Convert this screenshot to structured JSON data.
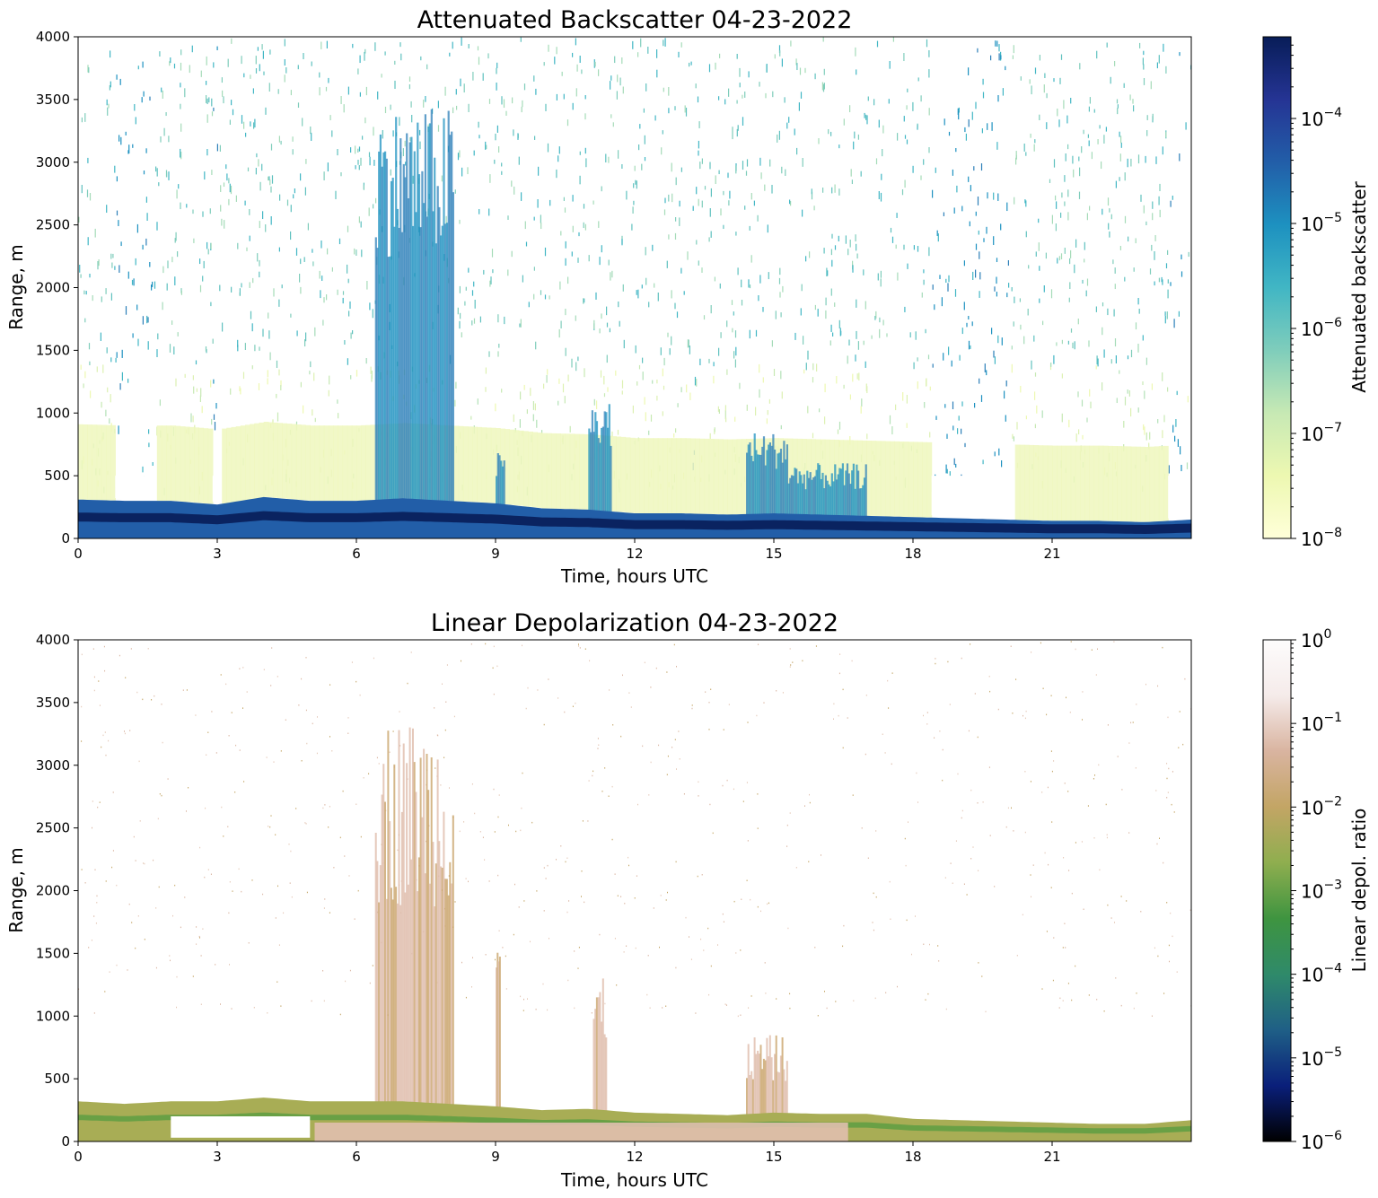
{
  "figure": {
    "panels": [
      {
        "id": "backscatter",
        "title": "Attenuated Backscatter 04-23-2022",
        "xlabel": "Time, hours UTC",
        "ylabel": "Range, m",
        "colorbar": {
          "label": "Attenuated backscatter",
          "scale": "log",
          "range": [
            1e-08,
            0.0006
          ],
          "ticks": [
            {
              "base": "10",
              "exp": "−4",
              "value": 0.0001
            },
            {
              "base": "10",
              "exp": "−5",
              "value": 1e-05
            },
            {
              "base": "10",
              "exp": "−6",
              "value": 1e-06
            },
            {
              "base": "10",
              "exp": "−7",
              "value": 1e-07
            },
            {
              "base": "10",
              "exp": "−8",
              "value": 1e-08
            }
          ],
          "colormap_name": "YlGnBu",
          "colormap": [
            "#ffffd9",
            "#edf8b1",
            "#c7e9b4",
            "#7fcdbb",
            "#41b6c4",
            "#1d91c0",
            "#225ea8",
            "#253494",
            "#081d58"
          ]
        }
      },
      {
        "id": "depolarization",
        "title": "Linear Depolarization 04-23-2022",
        "xlabel": "Time, hours UTC",
        "ylabel": "Range, m",
        "colorbar": {
          "label": "Linear depol. ratio",
          "scale": "log",
          "range": [
            1e-06,
            1
          ],
          "ticks": [
            {
              "base": "10",
              "exp": "0",
              "value": 1
            },
            {
              "base": "10",
              "exp": "−1",
              "value": 0.1
            },
            {
              "base": "10",
              "exp": "−2",
              "value": 0.01
            },
            {
              "base": "10",
              "exp": "−3",
              "value": 0.001
            },
            {
              "base": "10",
              "exp": "−4",
              "value": 0.0001
            },
            {
              "base": "10",
              "exp": "−5",
              "value": 1e-05
            },
            {
              "base": "10",
              "exp": "−6",
              "value": 1e-06
            }
          ],
          "colormap_name": "gist_earth",
          "colormap": [
            "#000000",
            "#0a1f7a",
            "#1f5f86",
            "#2f8a6a",
            "#3e9440",
            "#8fae4f",
            "#c3a565",
            "#d9b4a0",
            "#f5ebea",
            "#fdfcfc"
          ]
        }
      }
    ]
  },
  "chart_data": [
    {
      "type": "heatmap",
      "title": "Attenuated Backscatter 04-23-2022",
      "xlabel": "Time, hours UTC",
      "ylabel": "Range, m",
      "xlim": [
        0,
        24
      ],
      "ylim": [
        0,
        4000
      ],
      "xticks": [
        0,
        3,
        6,
        9,
        12,
        15,
        18,
        21
      ],
      "yticks": [
        0,
        500,
        1000,
        1500,
        2000,
        2500,
        3000,
        3500,
        4000
      ],
      "color_scale": "log",
      "color_range": [
        1e-08,
        0.0006
      ],
      "boundary_layer_top_m": {
        "x": [
          0,
          1,
          2,
          3,
          4,
          5,
          6,
          7,
          8,
          9,
          10,
          11,
          12,
          13,
          14,
          15,
          16,
          17,
          18,
          19,
          20,
          21,
          22,
          23,
          24
        ],
        "y": [
          310,
          300,
          300,
          270,
          330,
          300,
          300,
          320,
          300,
          280,
          240,
          230,
          200,
          200,
          190,
          200,
          190,
          180,
          170,
          160,
          150,
          140,
          140,
          130,
          150
        ]
      },
      "clear_sky_gaps_below_500m_hours": [
        [
          0.8,
          1.6
        ],
        [
          2.9,
          3.0
        ],
        [
          18.4,
          20.1
        ],
        [
          23.5,
          23.9
        ]
      ],
      "elevated_features": [
        {
          "x_start": 6.4,
          "x_end": 8.1,
          "top_m": 3450
        },
        {
          "x_start": 9.0,
          "x_end": 9.2,
          "top_m": 700
        },
        {
          "x_start": 11.0,
          "x_end": 11.5,
          "top_m": 1100
        },
        {
          "x_start": 14.4,
          "x_end": 15.3,
          "top_m": 850
        },
        {
          "x_start": 15.3,
          "x_end": 17.0,
          "top_m": 600
        }
      ]
    },
    {
      "type": "heatmap",
      "title": "Linear Depolarization 04-23-2022",
      "xlabel": "Time, hours UTC",
      "ylabel": "Range, m",
      "xlim": [
        0,
        24
      ],
      "ylim": [
        0,
        4000
      ],
      "xticks": [
        0,
        3,
        6,
        9,
        12,
        15,
        18,
        21
      ],
      "yticks": [
        0,
        500,
        1000,
        1500,
        2000,
        2500,
        3000,
        3500,
        4000
      ],
      "color_scale": "log",
      "color_range": [
        1e-06,
        1
      ],
      "low_level_depol_layer_top_m": {
        "x": [
          0,
          1,
          2,
          3,
          4,
          5,
          6,
          7,
          8,
          9,
          10,
          11,
          12,
          13,
          14,
          15,
          16,
          17,
          18,
          19,
          20,
          21,
          22,
          23,
          24
        ],
        "y": [
          320,
          300,
          320,
          320,
          350,
          320,
          320,
          320,
          300,
          280,
          250,
          260,
          230,
          220,
          210,
          230,
          220,
          220,
          180,
          170,
          160,
          150,
          140,
          140,
          170
        ]
      },
      "high_depol_features": [
        {
          "x_start": 6.4,
          "x_end": 8.1,
          "top_m": 3400
        },
        {
          "x_start": 9.0,
          "x_end": 9.1,
          "top_m": 1900
        },
        {
          "x_start": 11.1,
          "x_end": 11.4,
          "top_m": 1300
        },
        {
          "x_start": 14.4,
          "x_end": 15.3,
          "top_m": 850
        }
      ]
    }
  ]
}
